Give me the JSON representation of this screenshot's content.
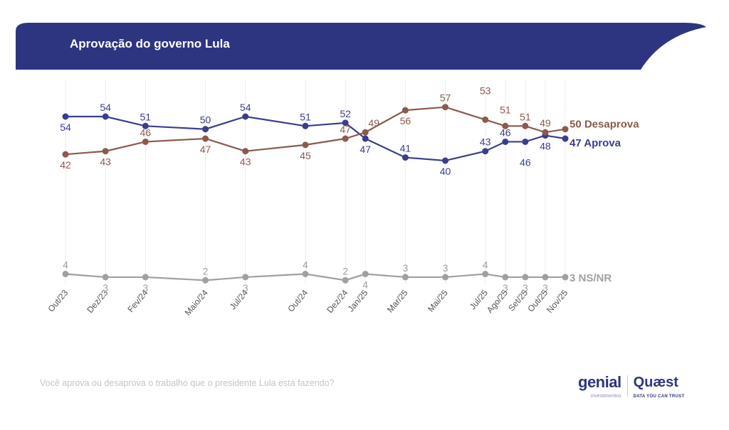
{
  "header": {
    "title": "Aprovação do governo Lula",
    "color": "#2e3580"
  },
  "footer": {
    "question": "Você aprova ou desaprova o trabalho que o presidente Lula está fazendo?",
    "logo_genial": "genial",
    "logo_genial_sub": "investimentos",
    "logo_quaest": "Quæst",
    "logo_quaest_sub": "DATA YOU CAN TRUST"
  },
  "chart_data": {
    "type": "line",
    "title": "Aprovação do governo Lula",
    "categories": [
      "Out/23",
      "Dez/23",
      "Fev/24",
      "Maio/24",
      "Jul/24",
      "Out/24",
      "Dez/24",
      "Jan/25",
      "Mar/25",
      "Mai/25",
      "Jul/25",
      "Ago/25",
      "Set/25",
      "Out/25",
      "Nov/25"
    ],
    "grid": "vertical",
    "legend": "end-labels",
    "series": [
      {
        "name": "Aprova",
        "end_label": "47 Aprova",
        "color": "#3b3d8f",
        "values": [
          54,
          54,
          51,
          50,
          54,
          51,
          52,
          47,
          41,
          40,
          43,
          46,
          46,
          48,
          47
        ]
      },
      {
        "name": "Desaprova",
        "end_label": "50 Desaprova",
        "color": "#8b5a4e",
        "values": [
          42,
          43,
          46,
          47,
          43,
          45,
          47,
          49,
          56,
          57,
          53,
          51,
          51,
          49,
          50
        ]
      },
      {
        "name": "NS/NR",
        "end_label": "3 NS/NR",
        "color": "#a0a0a0",
        "values": [
          4,
          3,
          3,
          2,
          3,
          4,
          2,
          4,
          3,
          3,
          4,
          3,
          3,
          3,
          3
        ]
      }
    ]
  }
}
